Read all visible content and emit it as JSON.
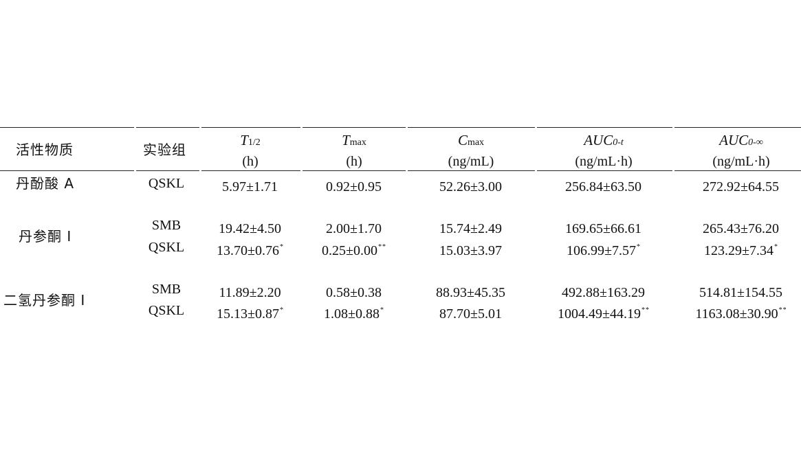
{
  "table": {
    "headers": {
      "substance": "活性物质",
      "group": "实验组",
      "t_half": {
        "sym": "T",
        "sub": "1/2",
        "unit": "(h)"
      },
      "tmax": {
        "sym": "T",
        "sub": "max",
        "unit": "(h)"
      },
      "cmax": {
        "sym": "C",
        "sub": "max",
        "unit": "(ng/mL)"
      },
      "auc_t": {
        "sym": "AUC",
        "sub": "0-t",
        "unit": "(ng/mL·h)"
      },
      "auc_inf": {
        "sym": "AUC",
        "sub": "0-∞",
        "unit": "(ng/mL·h)"
      }
    },
    "rows": [
      {
        "substance": "丹酚酸 A",
        "group": "QSKL",
        "t_half": "5.97±1.71",
        "t_half_sig": "",
        "tmax": "0.92±0.95",
        "tmax_sig": "",
        "cmax": "52.26±3.00",
        "cmax_sig": "",
        "auc_t": "256.84±63.50",
        "auc_t_sig": "",
        "auc_inf": "272.92±64.55",
        "auc_inf_sig": ""
      },
      {
        "substance": "丹参酮 I",
        "group": "SMB",
        "t_half": "19.42±4.50",
        "t_half_sig": "",
        "tmax": "2.00±1.70",
        "tmax_sig": "",
        "cmax": "15.74±2.49",
        "cmax_sig": "",
        "auc_t": "169.65±66.61",
        "auc_t_sig": "",
        "auc_inf": "265.43±76.20",
        "auc_inf_sig": ""
      },
      {
        "substance": "",
        "group": "QSKL",
        "t_half": "13.70±0.76",
        "t_half_sig": "*",
        "tmax": "0.25±0.00",
        "tmax_sig": "**",
        "cmax": "15.03±3.97",
        "cmax_sig": "",
        "auc_t": "106.99±7.57",
        "auc_t_sig": "*",
        "auc_inf": "123.29±7.34",
        "auc_inf_sig": "*"
      },
      {
        "substance": "二氢丹参酮 I",
        "group": "SMB",
        "t_half": "11.89±2.20",
        "t_half_sig": "",
        "tmax": "0.58±0.38",
        "tmax_sig": "",
        "cmax": "88.93±45.35",
        "cmax_sig": "",
        "auc_t": "492.88±163.29",
        "auc_t_sig": "",
        "auc_inf": "514.81±154.55",
        "auc_inf_sig": ""
      },
      {
        "substance": "",
        "group": "QSKL",
        "t_half": "15.13±0.87",
        "t_half_sig": "*",
        "tmax": "1.08±0.88",
        "tmax_sig": "*",
        "cmax": "87.70±5.01",
        "cmax_sig": "",
        "auc_t": "1004.49±44.19",
        "auc_t_sig": "**",
        "auc_inf": "1163.08±30.90",
        "auc_inf_sig": "**"
      }
    ]
  }
}
